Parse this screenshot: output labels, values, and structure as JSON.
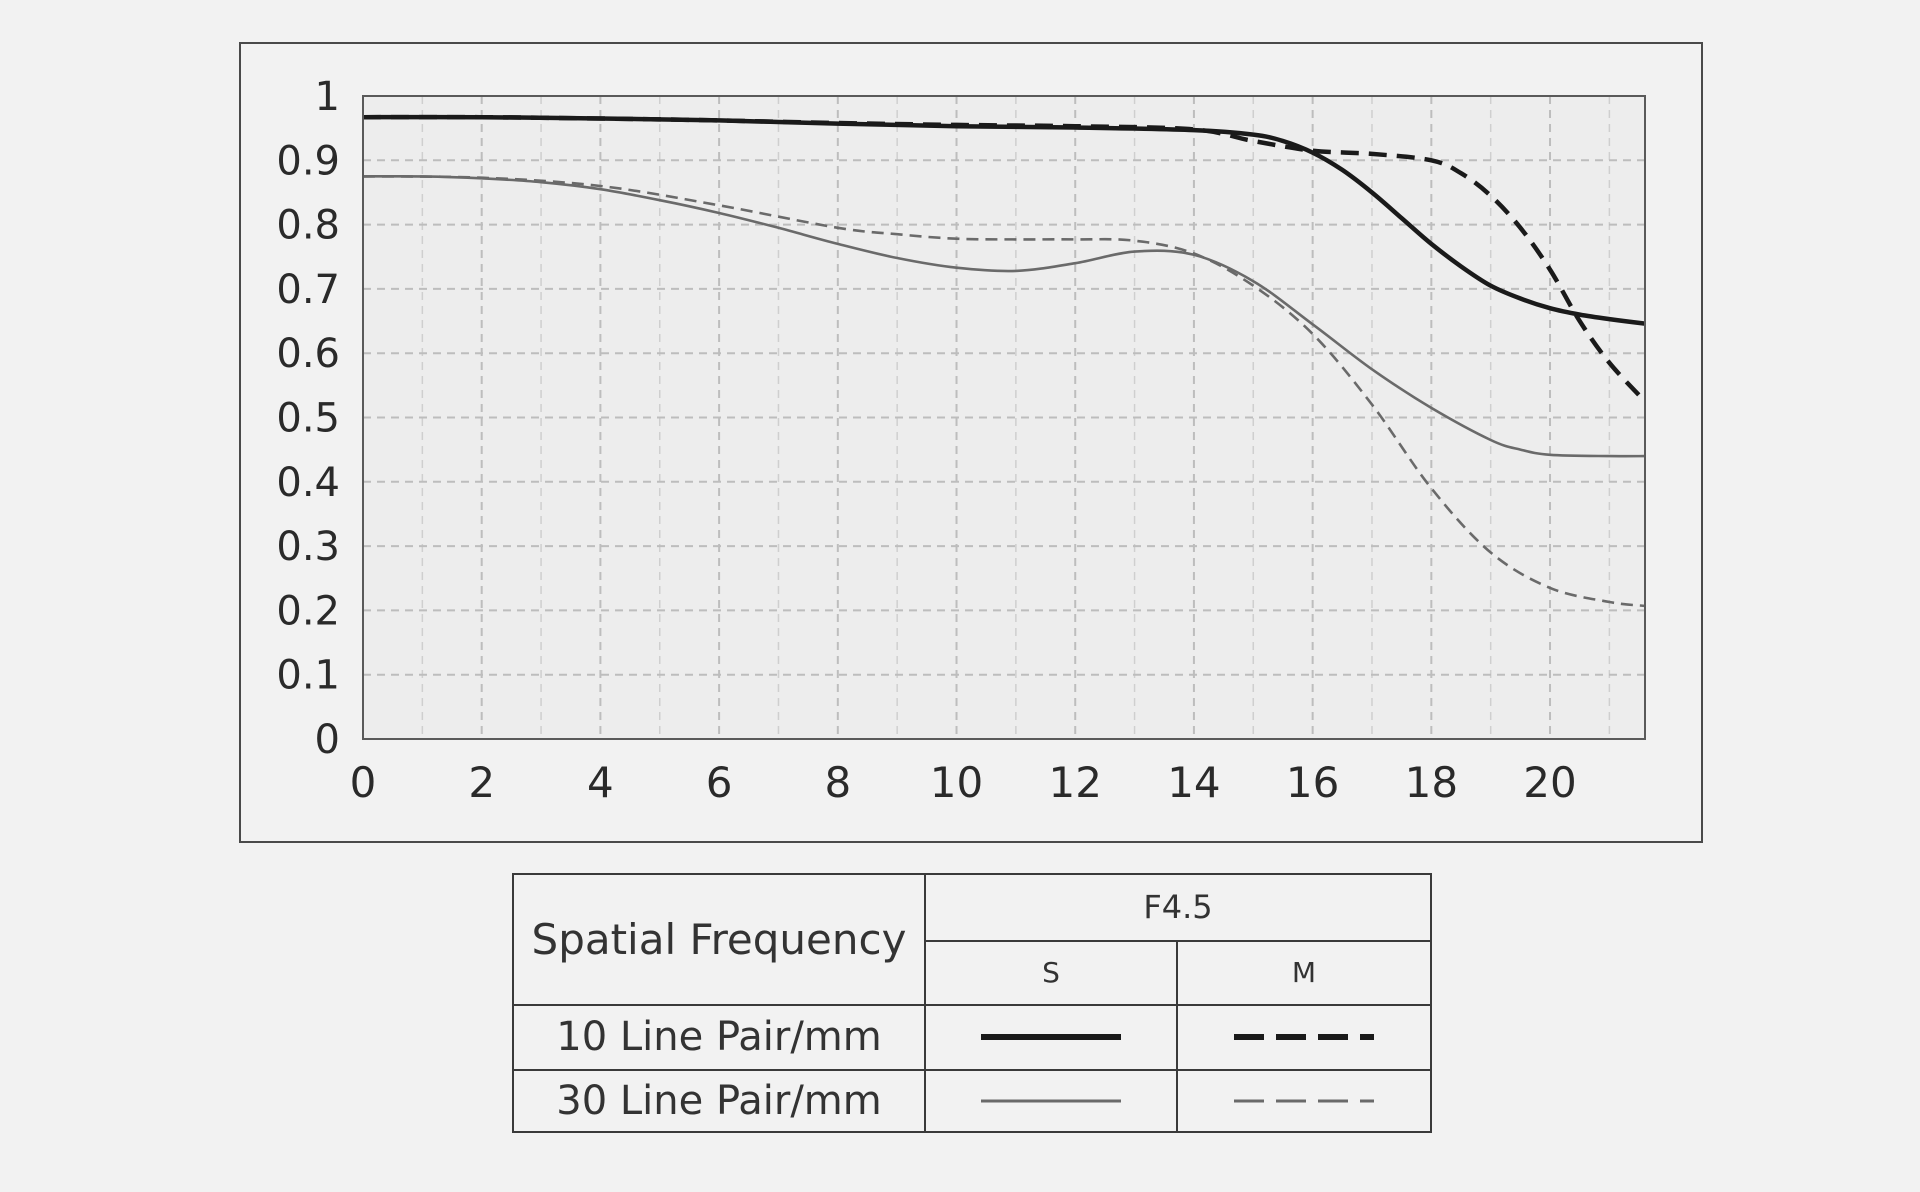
{
  "chart_data": {
    "type": "line",
    "title": "",
    "xlabel": "",
    "ylabel": "",
    "xlim": [
      0,
      21.6
    ],
    "ylim": [
      0,
      1
    ],
    "x_ticks": [
      "0",
      "2",
      "4",
      "6",
      "8",
      "10",
      "12",
      "14",
      "16",
      "18",
      "20"
    ],
    "y_ticks": [
      "0",
      "0.1",
      "0.2",
      "0.3",
      "0.4",
      "0.5",
      "0.6",
      "0.7",
      "0.8",
      "0.9",
      "1"
    ],
    "grid": true,
    "series": [
      {
        "frequency": "10 Line Pair/mm",
        "direction": "S",
        "style": "solid-bold",
        "color": "#1a1a1a",
        "x": [
          0,
          2,
          4,
          6,
          8,
          10,
          12,
          14,
          15,
          15.5,
          16,
          16.5,
          17,
          17.5,
          18,
          18.5,
          19,
          19.5,
          20,
          20.5,
          21,
          21.6
        ],
        "y": [
          0.967,
          0.967,
          0.965,
          0.962,
          0.957,
          0.953,
          0.951,
          0.947,
          0.94,
          0.93,
          0.912,
          0.885,
          0.85,
          0.81,
          0.77,
          0.735,
          0.705,
          0.685,
          0.67,
          0.66,
          0.653,
          0.646
        ]
      },
      {
        "frequency": "10 Line Pair/mm",
        "direction": "M",
        "style": "dashed-bold",
        "color": "#1a1a1a",
        "x": [
          0,
          2,
          4,
          6,
          8,
          10,
          12,
          14,
          15,
          16,
          17,
          18,
          18.5,
          19,
          19.5,
          20,
          20.5,
          21,
          21.6
        ],
        "y": [
          0.967,
          0.967,
          0.965,
          0.962,
          0.958,
          0.955,
          0.953,
          0.948,
          0.93,
          0.915,
          0.91,
          0.9,
          0.88,
          0.845,
          0.795,
          0.73,
          0.65,
          0.585,
          0.525
        ]
      },
      {
        "frequency": "30 Line Pair/mm",
        "direction": "S",
        "style": "solid-thin",
        "color": "#6a6a6a",
        "x": [
          0,
          1,
          2,
          3,
          4,
          5,
          6,
          7,
          8,
          9,
          10,
          11,
          12,
          13,
          14,
          15,
          16,
          17,
          18,
          19,
          19.5,
          20,
          21,
          21.6
        ],
        "y": [
          0.875,
          0.875,
          0.872,
          0.866,
          0.855,
          0.838,
          0.818,
          0.795,
          0.77,
          0.748,
          0.733,
          0.728,
          0.74,
          0.758,
          0.753,
          0.712,
          0.645,
          0.575,
          0.515,
          0.465,
          0.45,
          0.442,
          0.44,
          0.44
        ]
      },
      {
        "frequency": "30 Line Pair/mm",
        "direction": "M",
        "style": "dashed-thin",
        "color": "#6a6a6a",
        "x": [
          0,
          2,
          4,
          6,
          8,
          9,
          10,
          11,
          12,
          13,
          14,
          15,
          16,
          17,
          18,
          19,
          20,
          21,
          21.6
        ],
        "y": [
          0.875,
          0.873,
          0.86,
          0.83,
          0.795,
          0.785,
          0.778,
          0.777,
          0.777,
          0.775,
          0.755,
          0.705,
          0.63,
          0.52,
          0.39,
          0.29,
          0.235,
          0.213,
          0.207
        ]
      }
    ]
  },
  "legend": {
    "spatial_frequency_label": "Spatial Frequency",
    "aperture_label": "F4.5",
    "s_label": "S",
    "m_label": "M",
    "row1_label": "10 Line Pair/mm",
    "row2_label": "30 Line Pair/mm"
  }
}
